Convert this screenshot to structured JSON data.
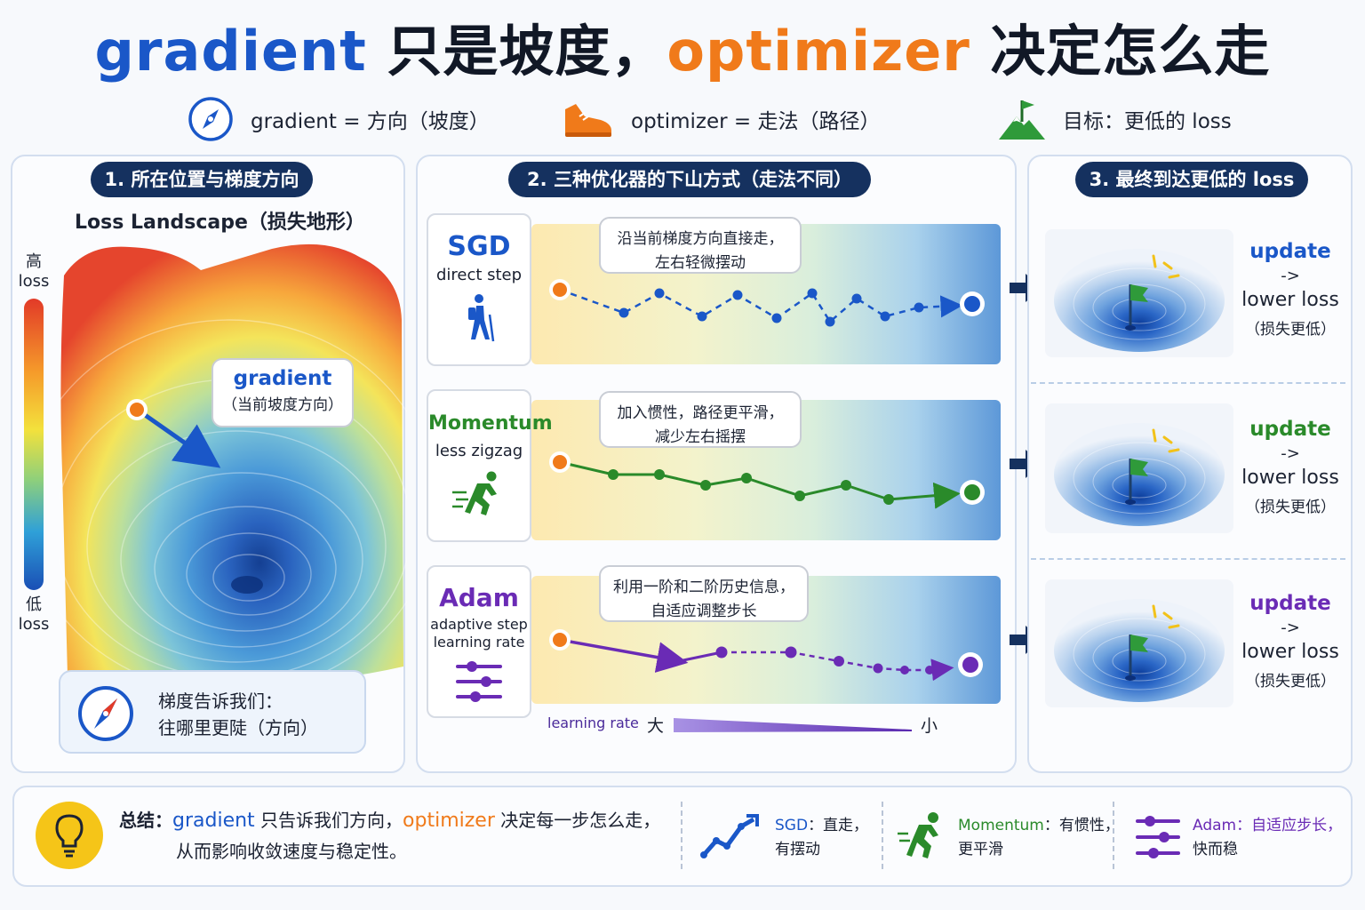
{
  "title": {
    "grad": "gradient",
    "mid": " 只是坡度，",
    "opt": "optimizer",
    "end": " 决定怎么走"
  },
  "legend": {
    "gradient": "gradient = 方向（坡度）",
    "optimizer": "optimizer = 走法（路径）",
    "goal": "目标：更低的 loss"
  },
  "panel1": {
    "pill": "1. 所在位置与梯度方向",
    "title": "Loss Landscape（损失地形）",
    "high": "高",
    "high_unit": "loss",
    "low": "低",
    "low_unit": "loss",
    "bubble_title": "gradient",
    "bubble_sub": "（当前坡度方向）",
    "tip_line1": "梯度告诉我们：",
    "tip_line2": "往哪里更陡（方向）"
  },
  "panel2": {
    "pill": "2. 三种优化器的下山方式（走法不同）",
    "rows": [
      {
        "name": "SGD",
        "sub1": "direct step",
        "sub2": "",
        "note1": "沿当前梯度方向直接走，",
        "note2": "左右轻微摆动",
        "color": "#1a57c8"
      },
      {
        "name": "Momentum",
        "sub1": "less zigzag",
        "sub2": "",
        "note1": "加入惯性，路径更平滑，",
        "note2": "减少左右摇摆",
        "color": "#2a8a2a"
      },
      {
        "name": "Adam",
        "sub1": "adaptive step",
        "sub2": "learning rate",
        "note1": "利用一阶和二阶历史信息，",
        "note2": "自适应调整步长",
        "color": "#6a2bb5"
      }
    ],
    "lr_label": "learning rate",
    "lr_big": "大",
    "lr_small": "小"
  },
  "panel3": {
    "pill": "3. 最终到达更低的 loss",
    "results": [
      {
        "update": "update",
        "arrow": "->",
        "lower": "lower loss",
        "sub": "（损失更低）",
        "color": "#1a57c8"
      },
      {
        "update": "update",
        "arrow": "->",
        "lower": "lower loss",
        "sub": "（损失更低）",
        "color": "#2a8a2a"
      },
      {
        "update": "update",
        "arrow": "->",
        "lower": "lower loss",
        "sub": "（损失更低）",
        "color": "#6a2bb5"
      }
    ]
  },
  "summary": {
    "lead": "总结：",
    "grad": "gradient",
    "mid": " 只告诉我们方向，",
    "opt": "optimizer",
    "end": " 决定每一步怎么走，",
    "line2": "从而影响收敛速度与稳定性。",
    "sgd_name": "SGD",
    "sgd_text1": "：直走，",
    "sgd_text2": "有摆动",
    "mom_name": "Momentum",
    "mom_text1": "：有惯性，",
    "mom_text2": "更平滑",
    "adam_name": "Adam",
    "adam_text1": "：自适应步长，",
    "adam_text2": "快而稳"
  },
  "colors": {
    "blue": "#1a57c8",
    "orange": "#f07a1a",
    "green": "#2a8a2a",
    "purple": "#6a2bb5",
    "navy": "#15315f"
  }
}
